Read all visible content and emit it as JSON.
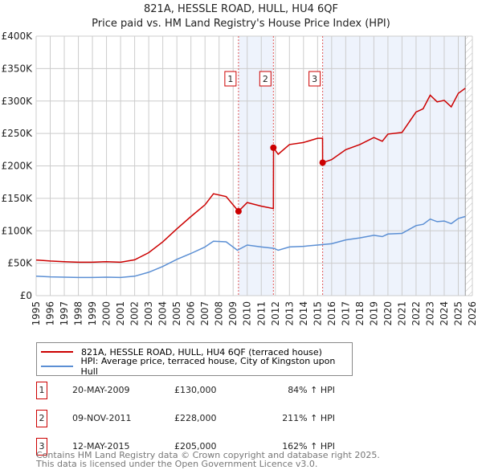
{
  "chart_data": {
    "type": "line",
    "title": "821A, HESSLE ROAD, HULL, HU4 6QF",
    "subtitle": "Price paid vs. HM Land Registry's House Price Index (HPI)",
    "xlim": [
      1995,
      2026
    ],
    "ylim": [
      0,
      400000
    ],
    "y_ticks": [
      {
        "v": 0,
        "label": "£0"
      },
      {
        "v": 50000,
        "label": "£50K"
      },
      {
        "v": 100000,
        "label": "£100K"
      },
      {
        "v": 150000,
        "label": "£150K"
      },
      {
        "v": 200000,
        "label": "£200K"
      },
      {
        "v": 250000,
        "label": "£250K"
      },
      {
        "v": 300000,
        "label": "£300K"
      },
      {
        "v": 350000,
        "label": "£350K"
      },
      {
        "v": 400000,
        "label": "£400K"
      }
    ],
    "x_ticks": [
      "1995",
      "1996",
      "1997",
      "1998",
      "1999",
      "2000",
      "2001",
      "2002",
      "2003",
      "2004",
      "2005",
      "2006",
      "2007",
      "2008",
      "2009",
      "2010",
      "2011",
      "2012",
      "2013",
      "2014",
      "2015",
      "2016",
      "2017",
      "2018",
      "2019",
      "2020",
      "2021",
      "2022",
      "2023",
      "2024",
      "2025",
      "2026"
    ],
    "grid": true,
    "shaded_ranges": [
      [
        2009.38,
        2011.86
      ],
      [
        2015.36,
        2025.5
      ]
    ],
    "hatched_from": 2025.5,
    "series": [
      {
        "name": "821A, HESSLE ROAD, HULL, HU4 6QF (terraced house)",
        "color": "#cc0000",
        "x": [
          1995,
          1996,
          1997,
          1998,
          1999,
          2000,
          2001,
          2002,
          2003,
          2004,
          2005,
          2006,
          2007,
          2007.6,
          2008.5,
          2009.38,
          2010,
          2011,
          2011.86,
          2011.87,
          2012.2,
          2013,
          2014,
          2015,
          2015.35,
          2015.36,
          2016,
          2017,
          2018,
          2019,
          2019.6,
          2020,
          2021,
          2022,
          2022.5,
          2023,
          2023.5,
          2024,
          2024.5,
          2025,
          2025.5
        ],
        "y": [
          55000,
          53400,
          52400,
          51500,
          51500,
          52400,
          51500,
          55200,
          66200,
          82800,
          103000,
          122000,
          140000,
          157000,
          152700,
          130000,
          143500,
          138000,
          134300,
          228000,
          218000,
          233000,
          236000,
          242600,
          242600,
          205000,
          209600,
          225000,
          233000,
          243700,
          238000,
          249000,
          251500,
          283000,
          288000,
          309000,
          298700,
          301000,
          291000,
          311800,
          319600
        ]
      },
      {
        "name": "HPI: Average price, terraced house, City of Kingston upon Hull",
        "color": "#5b8fd4",
        "x": [
          1995,
          1996,
          1997,
          1998,
          1999,
          2000,
          2001,
          2002,
          2003,
          2004,
          2005,
          2006,
          2007,
          2007.6,
          2008.5,
          2009.3,
          2010,
          2011,
          2011.9,
          2012.2,
          2013,
          2014,
          2015,
          2016,
          2017,
          2018,
          2019,
          2019.6,
          2020,
          2021,
          2022,
          2022.5,
          2023,
          2023.5,
          2024,
          2024.5,
          2025,
          2025.5
        ],
        "y": [
          30000,
          29000,
          28500,
          28000,
          28000,
          28500,
          28000,
          30000,
          36000,
          45000,
          56000,
          65000,
          75000,
          84000,
          83000,
          70000,
          78000,
          75000,
          73000,
          70000,
          75000,
          76000,
          78000,
          80000,
          86000,
          89000,
          93000,
          91000,
          95000,
          96000,
          108000,
          110000,
          118000,
          114000,
          115000,
          111000,
          119000,
          122000
        ]
      }
    ],
    "sales": [
      {
        "label": "1",
        "x": 2009.38,
        "y": 130000,
        "date": "20-MAY-2009",
        "price": "£130,000",
        "hpi": "84% ↑ HPI"
      },
      {
        "label": "2",
        "x": 2011.86,
        "y": 228000,
        "date": "09-NOV-2011",
        "price": "£228,000",
        "hpi": "211% ↑ HPI"
      },
      {
        "label": "3",
        "x": 2015.36,
        "y": 205000,
        "date": "12-MAY-2015",
        "price": "£205,000",
        "hpi": "162% ↑ HPI"
      }
    ]
  },
  "footer": {
    "line1": "Contains HM Land Registry data © Crown copyright and database right 2025.",
    "line2": "This data is licensed under the Open Government Licence v3.0."
  }
}
